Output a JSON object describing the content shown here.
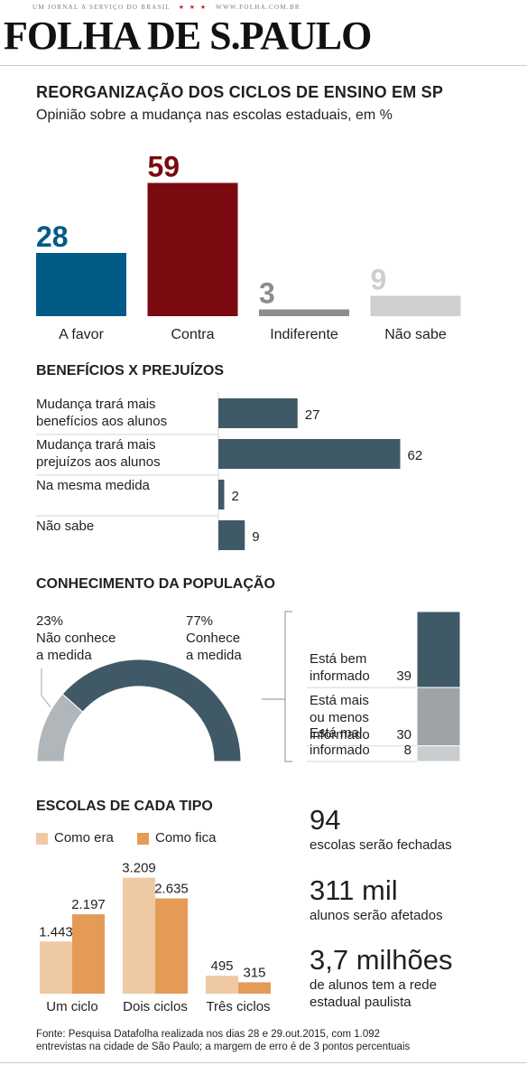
{
  "masthead": {
    "tagline": "UM JORNAL A SERVIÇO DO BRASIL",
    "stars": "★ ★ ★",
    "url": "WWW.FOLHA.COM.BR",
    "logo": "FOLHA DE S.PAULO"
  },
  "header": {
    "title": "REORGANIZAÇÃO DOS CICLOS DE ENSINO EM SP",
    "subtitle": "Opinião sobre a mudança nas escolas estaduais, em %"
  },
  "chart_data": [
    {
      "type": "bar",
      "categories": [
        "A favor",
        "Contra",
        "Indiferente",
        "Não sabe"
      ],
      "values": [
        28,
        59,
        3,
        9
      ],
      "colors": [
        "#005b87",
        "#7a0a0f",
        "#8c8c8c",
        "#cfcfcf"
      ]
    },
    {
      "type": "bar",
      "orientation": "horizontal",
      "title": "BENEFÍCIOS X PREJUÍZOS",
      "categories": [
        [
          "Mudança trará mais",
          "benefícios aos alunos"
        ],
        [
          "Mudança trará mais",
          "prejuízos aos alunos"
        ],
        [
          "Na mesma medida"
        ],
        [
          "Não sabe"
        ]
      ],
      "values": [
        27,
        62,
        2,
        9
      ],
      "color": "#3f5a66"
    },
    {
      "type": "pie",
      "title": "CONHECIMENTO DA POPULAÇÃO",
      "slices": [
        {
          "value": 23,
          "label": "23%",
          "text": [
            "Não conhece",
            "a medida"
          ],
          "color": "#b0b6b9"
        },
        {
          "value": 77,
          "label": "77%",
          "text": [
            "Conhece",
            "a medida"
          ],
          "color": "#3f5a66"
        }
      ],
      "breakdown": [
        {
          "text": [
            "Está bem",
            "informado"
          ],
          "value": 39,
          "color": "#3f5a66"
        },
        {
          "text": [
            "Está mais",
            "ou menos",
            "informado"
          ],
          "value": 30,
          "color": "#9da3a6"
        },
        {
          "text": [
            "Está mal",
            "informado"
          ],
          "value": 8,
          "color": "#c9cdcf"
        }
      ]
    },
    {
      "type": "bar",
      "title": "ESCOLAS DE CADA TIPO",
      "categories": [
        "Um ciclo",
        "Dois ciclos",
        "Três ciclos"
      ],
      "series": [
        {
          "name": "Como era",
          "values": [
            1443,
            3209,
            495
          ],
          "labels": [
            "1.443",
            "3.209",
            "495"
          ],
          "color": "#efc9a4"
        },
        {
          "name": "Como fica",
          "values": [
            2197,
            2635,
            315
          ],
          "labels": [
            "2.197",
            "2.635",
            "315"
          ],
          "color": "#e59b56"
        }
      ]
    }
  ],
  "stats": [
    {
      "number": "94",
      "label": [
        "escolas serão fechadas"
      ]
    },
    {
      "number": "311 mil",
      "label": [
        "alunos serão afetados"
      ]
    },
    {
      "number": "3,7 milhões",
      "label": [
        "de alunos tem a rede",
        "estadual paulista"
      ]
    }
  ],
  "source": [
    "Fonte: Pesquisa Datafolha realizada nos dias 28 e 29.out.2015, com 1.092",
    "entrevistas na cidade de São Paulo; a margem de erro é de 3 pontos percentuais"
  ]
}
